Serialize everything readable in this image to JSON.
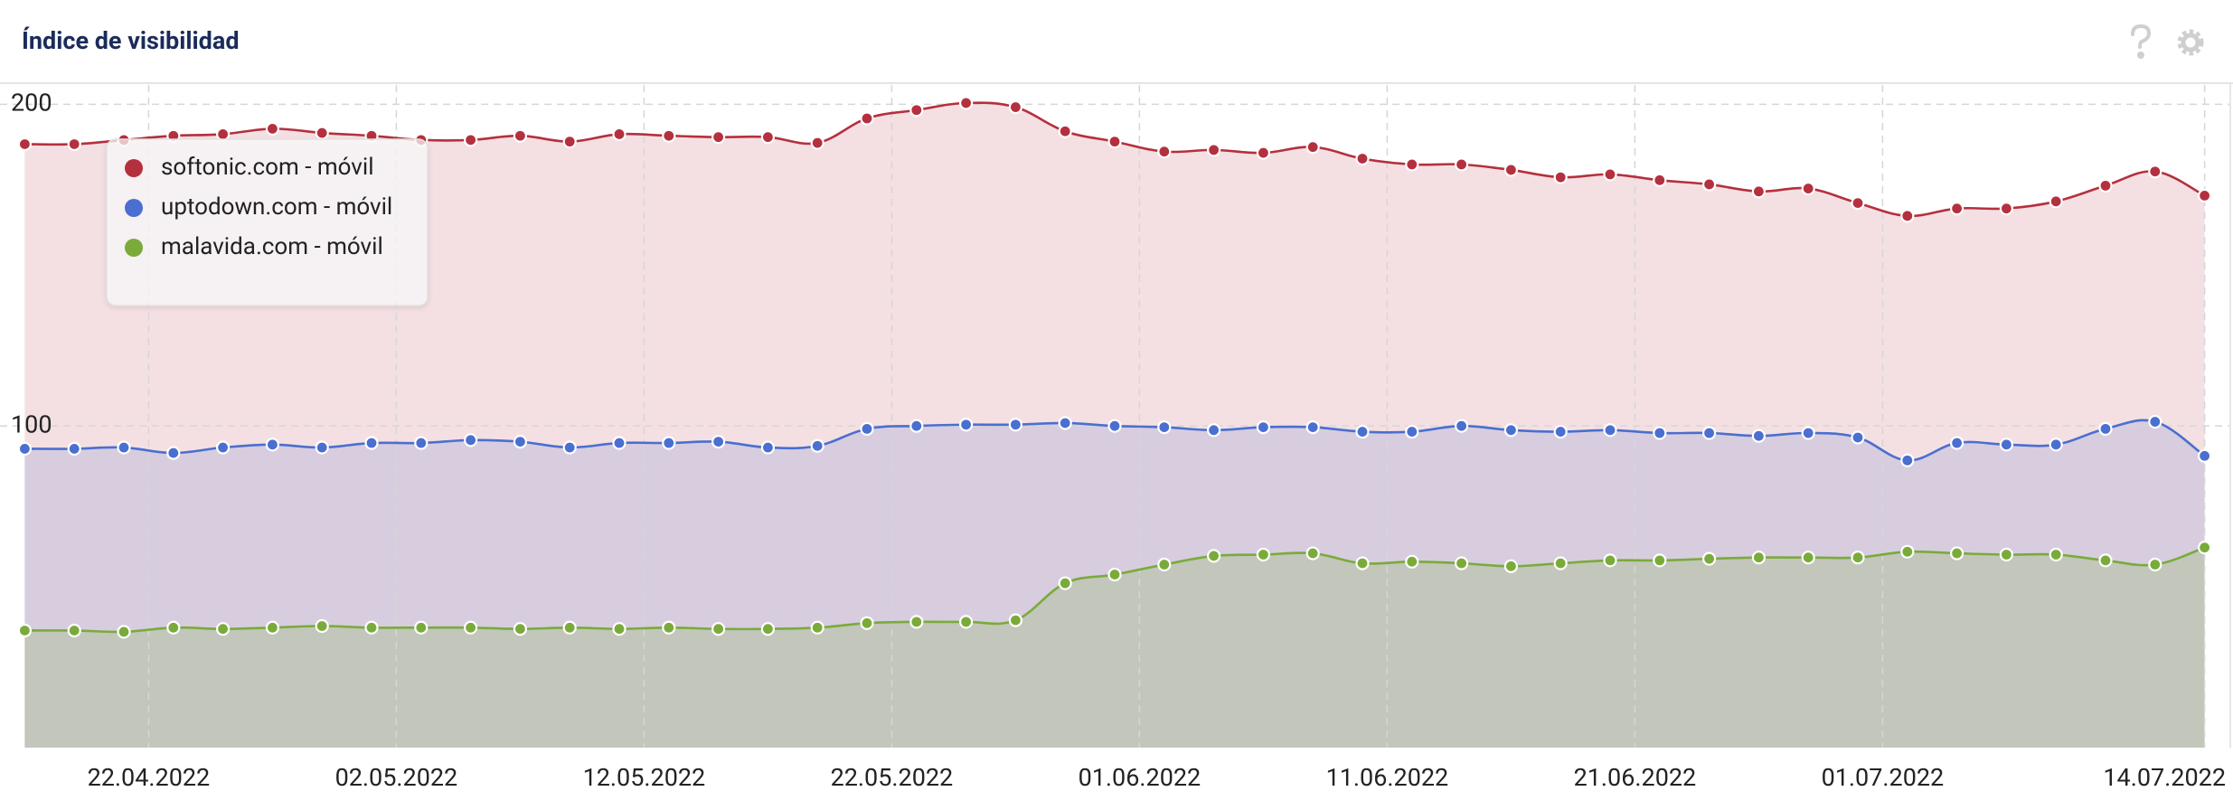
{
  "chart_data": {
    "type": "area",
    "title": "Índice de visibilidad",
    "x": [
      "17.04.2022",
      "19.04.2022",
      "21.04.2022",
      "23.04.2022",
      "25.04.2022",
      "27.04.2022",
      "29.04.2022",
      "01.05.2022",
      "03.05.2022",
      "05.05.2022",
      "07.05.2022",
      "09.05.2022",
      "11.05.2022",
      "13.05.2022",
      "15.05.2022",
      "17.05.2022",
      "19.05.2022",
      "21.05.2022",
      "23.05.2022",
      "25.05.2022",
      "27.05.2022",
      "29.05.2022",
      "31.05.2022",
      "02.06.2022",
      "04.06.2022",
      "06.06.2022",
      "08.06.2022",
      "10.06.2022",
      "12.06.2022",
      "14.06.2022",
      "16.06.2022",
      "18.06.2022",
      "20.06.2022",
      "22.06.2022",
      "24.06.2022",
      "26.06.2022",
      "28.06.2022",
      "30.06.2022",
      "02.07.2022",
      "04.07.2022",
      "06.07.2022",
      "08.07.2022",
      "10.07.2022",
      "12.07.2022",
      "14.07.2022"
    ],
    "series": [
      {
        "name": "softonic.com - móvil",
        "color": "#b5303e",
        "values": [
          187.6,
          187.6,
          188.9,
          190.2,
          190.7,
          192.4,
          191.1,
          190.2,
          188.9,
          188.9,
          190.2,
          188.4,
          190.7,
          190.2,
          189.8,
          189.8,
          188.0,
          195.6,
          198.2,
          200.4,
          199.1,
          191.6,
          188.4,
          185.3,
          185.8,
          184.9,
          186.7,
          183.1,
          181.3,
          181.3,
          179.6,
          177.3,
          178.2,
          176.4,
          175.1,
          172.9,
          173.8,
          169.3,
          165.3,
          167.6,
          167.6,
          169.8,
          174.7,
          179.1,
          171.6
        ]
      },
      {
        "name": "uptodown.com - móvil",
        "color": "#4a6fd0",
        "values": [
          92.9,
          92.9,
          93.3,
          91.6,
          93.3,
          94.2,
          93.3,
          94.7,
          94.7,
          95.6,
          95.1,
          93.3,
          94.7,
          94.7,
          95.1,
          93.3,
          93.8,
          99.1,
          100,
          100.4,
          100.4,
          100.9,
          100,
          99.6,
          98.7,
          99.6,
          99.6,
          98.2,
          98.2,
          100,
          98.7,
          98.2,
          98.7,
          97.8,
          97.8,
          96.9,
          97.8,
          96.4,
          89.3,
          94.7,
          94.2,
          94.2,
          99.1,
          101.3,
          90.7
        ]
      },
      {
        "name": "malavida.com - móvil",
        "color": "#7aab3a",
        "values": [
          36.4,
          36.4,
          36.0,
          37.3,
          36.9,
          37.3,
          37.8,
          37.3,
          37.3,
          37.3,
          36.9,
          37.3,
          36.9,
          37.3,
          36.9,
          36.9,
          37.3,
          38.7,
          39.1,
          39.1,
          39.6,
          51.1,
          53.8,
          56.9,
          59.6,
          60.0,
          60.4,
          57.3,
          57.8,
          57.3,
          56.4,
          57.3,
          58.2,
          58.2,
          58.7,
          59.1,
          59.1,
          59.1,
          60.9,
          60.4,
          60.0,
          60.0,
          58.2,
          56.9,
          62.2
        ]
      }
    ],
    "xlim": [
      "16.04.2022",
      "15.07.2022"
    ],
    "xticks": [
      "22.04.2022",
      "02.05.2022",
      "12.05.2022",
      "22.05.2022",
      "01.06.2022",
      "11.06.2022",
      "21.06.2022",
      "01.07.2022",
      "14.07.2022"
    ],
    "ylim": [
      0,
      206
    ],
    "yticks": [
      100,
      200
    ],
    "grid": true,
    "legend": "upper left"
  }
}
